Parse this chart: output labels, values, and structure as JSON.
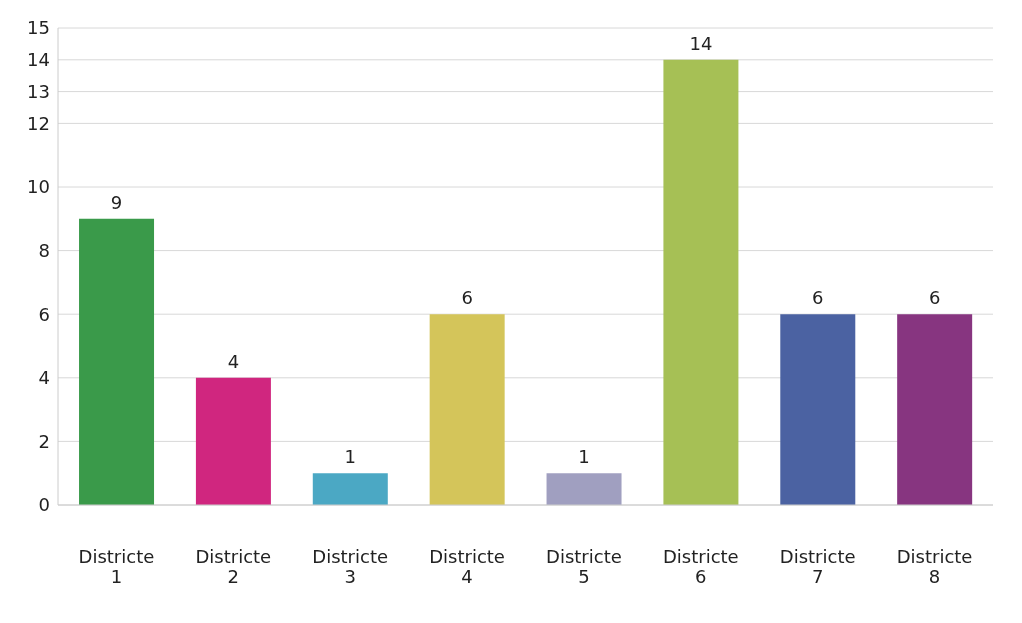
{
  "chart_data": {
    "type": "bar",
    "categories": [
      "Districte 1",
      "Districte 2",
      "Districte 3",
      "Districte 4",
      "Districte 5",
      "Districte 6",
      "Districte 7",
      "Districte 8"
    ],
    "values": [
      9,
      4,
      1,
      6,
      1,
      14,
      6,
      6
    ],
    "colors": [
      "#3a9a4a",
      "#d0267f",
      "#4ba8c4",
      "#d4c55a",
      "#a09fc0",
      "#a6c055",
      "#4b62a2",
      "#873580"
    ],
    "ylim": [
      0,
      15
    ],
    "yticks": [
      0,
      2,
      4,
      6,
      8,
      10,
      12,
      13,
      14,
      15
    ],
    "grid": "y",
    "data_labels": true
  }
}
